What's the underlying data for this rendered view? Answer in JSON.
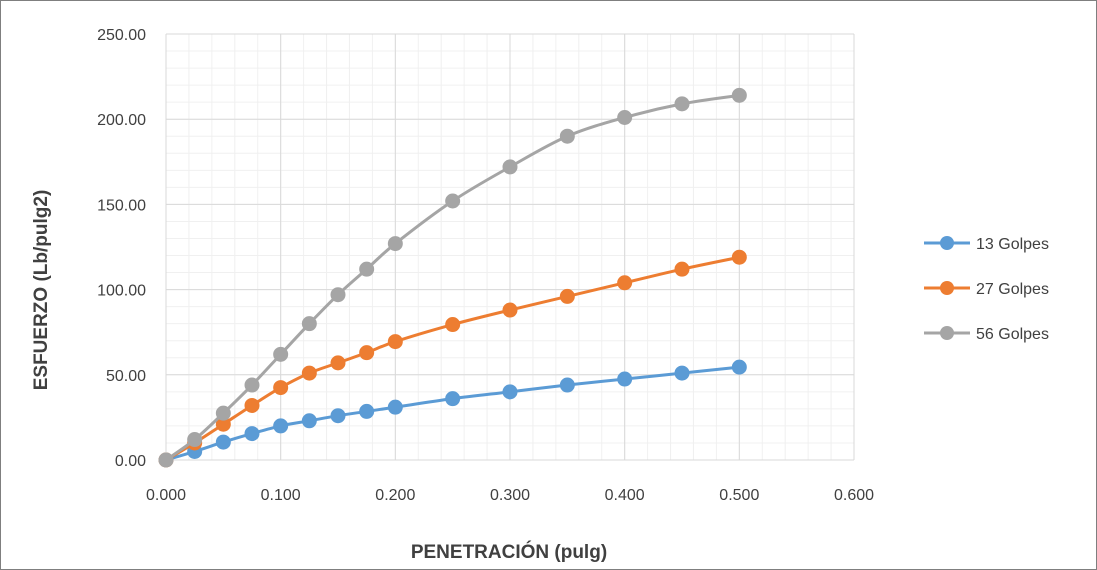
{
  "chart_data": {
    "type": "line",
    "title": "",
    "xlabel": "PENETRACIÓN (pulg)",
    "ylabel": "ESFUERZO (Lb/pulg2)",
    "xlim": [
      0,
      0.6
    ],
    "ylim": [
      0,
      250
    ],
    "x_ticks": [
      "0.000",
      "0.100",
      "0.200",
      "0.300",
      "0.400",
      "0.500",
      "0.600"
    ],
    "y_ticks": [
      "0.00",
      "50.00",
      "100.00",
      "150.00",
      "200.00",
      "250.00"
    ],
    "grid": true,
    "minor_grid": true,
    "legend_position": "right",
    "x": [
      0,
      0.025,
      0.05,
      0.075,
      0.1,
      0.125,
      0.15,
      0.175,
      0.2,
      0.25,
      0.3,
      0.35,
      0.4,
      0.45,
      0.5
    ],
    "series": [
      {
        "name": "13 Golpes",
        "color": "#5b9bd5",
        "values": [
          0,
          5,
          10.5,
          15.5,
          20,
          23,
          26,
          28.5,
          31,
          36,
          40,
          44,
          47.5,
          51,
          54.5
        ]
      },
      {
        "name": "27 Golpes",
        "color": "#ed7d31",
        "values": [
          0,
          10,
          21,
          32,
          42.5,
          51,
          57,
          63,
          69.5,
          79.5,
          88,
          96,
          104,
          112,
          119
        ]
      },
      {
        "name": "56 Golpes",
        "color": "#a5a5a5",
        "values": [
          0,
          12,
          27.5,
          44,
          62,
          80,
          97,
          112,
          127,
          152,
          172,
          190,
          201,
          209,
          214
        ]
      }
    ]
  }
}
